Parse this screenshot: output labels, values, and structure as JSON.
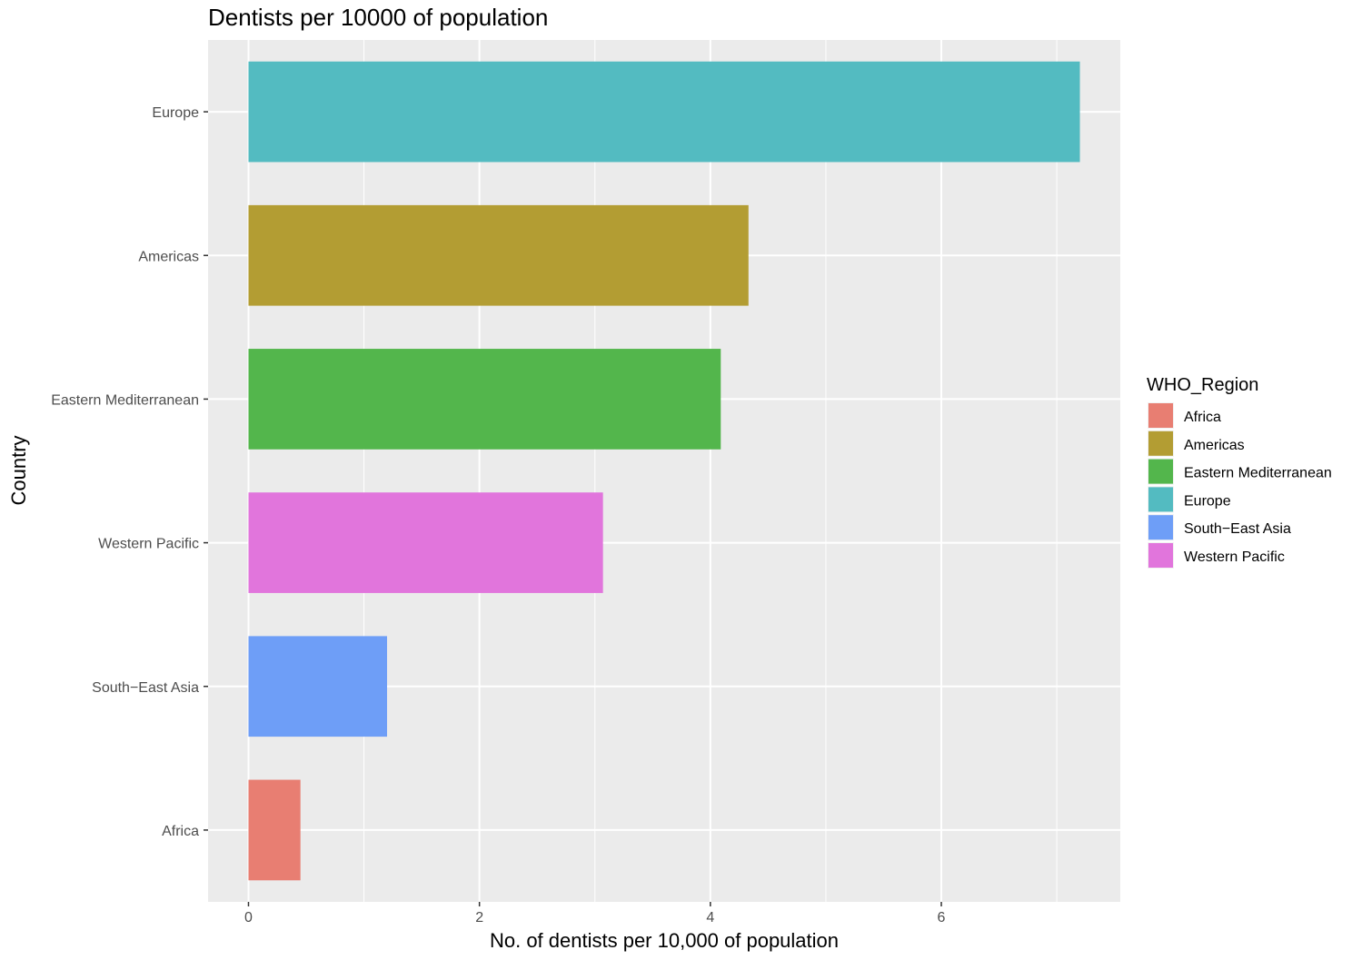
{
  "chart_data": {
    "type": "bar",
    "orientation": "horizontal",
    "title": "Dentists per 10000 of population",
    "xlabel": "No. of dentists per 10,000 of population",
    "ylabel": "Country",
    "categories": [
      "Europe",
      "Americas",
      "Eastern Mediterranean",
      "Western Pacific",
      "South−East Asia",
      "Africa"
    ],
    "values": [
      7.2,
      4.33,
      4.09,
      3.07,
      1.2,
      0.45
    ],
    "bar_colors": [
      "#53BBC1",
      "#B39D33",
      "#53B64C",
      "#E175DC",
      "#6E9EF7",
      "#E87E72"
    ],
    "xlim": [
      -0.35,
      7.55
    ],
    "xticks": [
      0,
      2,
      4,
      6
    ],
    "xtick_labels": [
      "0",
      "2",
      "4",
      "6"
    ],
    "grid": true,
    "legend": {
      "title": "WHO_Region",
      "position": "right",
      "entries": [
        {
          "label": "Africa",
          "color": "#E87E72"
        },
        {
          "label": "Americas",
          "color": "#B39D33"
        },
        {
          "label": "Eastern Mediterranean",
          "color": "#53B64C"
        },
        {
          "label": "Europe",
          "color": "#53BBC1"
        },
        {
          "label": "South−East Asia",
          "color": "#6E9EF7"
        },
        {
          "label": "Western Pacific",
          "color": "#E175DC"
        }
      ]
    }
  }
}
